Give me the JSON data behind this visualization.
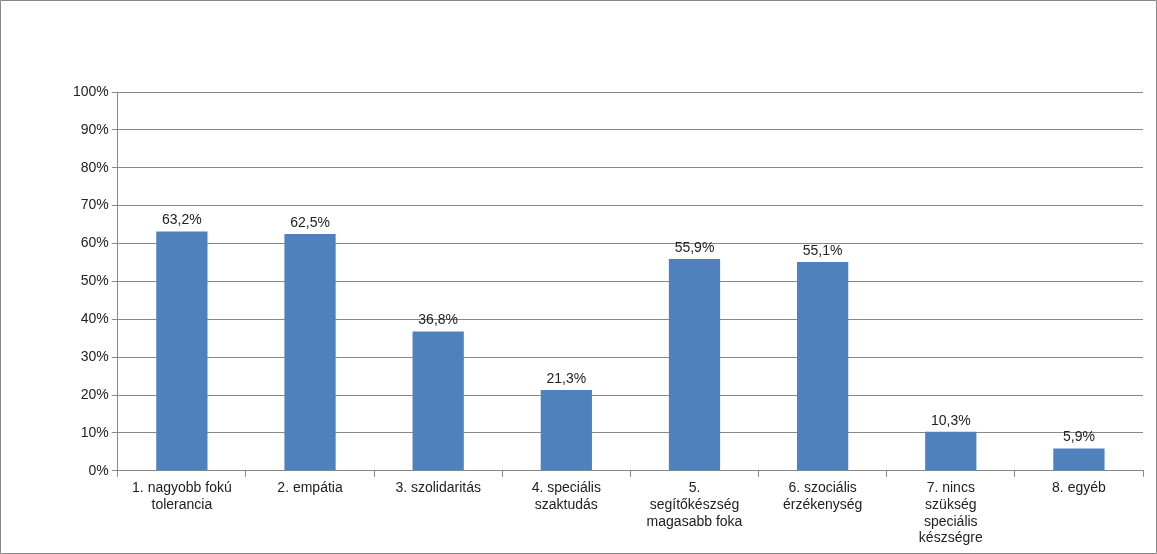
{
  "chart_data": {
    "type": "bar",
    "categories": [
      "1. nagyobb fokú tolerancia",
      "2. empátia",
      "3. szolidaritás",
      "4. speciális szaktudás",
      "5. segítőkészség magasabb foka",
      "6. szociális érzékenység",
      "7. nincs szükség speciális készségre",
      "8. egyéb"
    ],
    "values": [
      63.2,
      62.5,
      36.8,
      21.3,
      55.9,
      55.1,
      10.3,
      5.9
    ],
    "value_labels": [
      "63,2%",
      "62,5%",
      "36,8%",
      "21,3%",
      "55,9%",
      "55,1%",
      "10,3%",
      "5,9%"
    ],
    "color": "#4f81bd",
    "ylim": [
      0,
      100
    ],
    "yticks": [
      {
        "value": 0,
        "label": "0%"
      },
      {
        "value": 10,
        "label": "10%"
      },
      {
        "value": 20,
        "label": "20%"
      },
      {
        "value": 30,
        "label": "30%"
      },
      {
        "value": 40,
        "label": "40%"
      },
      {
        "value": 50,
        "label": "50%"
      },
      {
        "value": 60,
        "label": "60%"
      },
      {
        "value": 70,
        "label": "70%"
      },
      {
        "value": 80,
        "label": "80%"
      },
      {
        "value": 90,
        "label": "90%"
      },
      {
        "value": 100,
        "label": "100%"
      }
    ],
    "grid": "y"
  }
}
